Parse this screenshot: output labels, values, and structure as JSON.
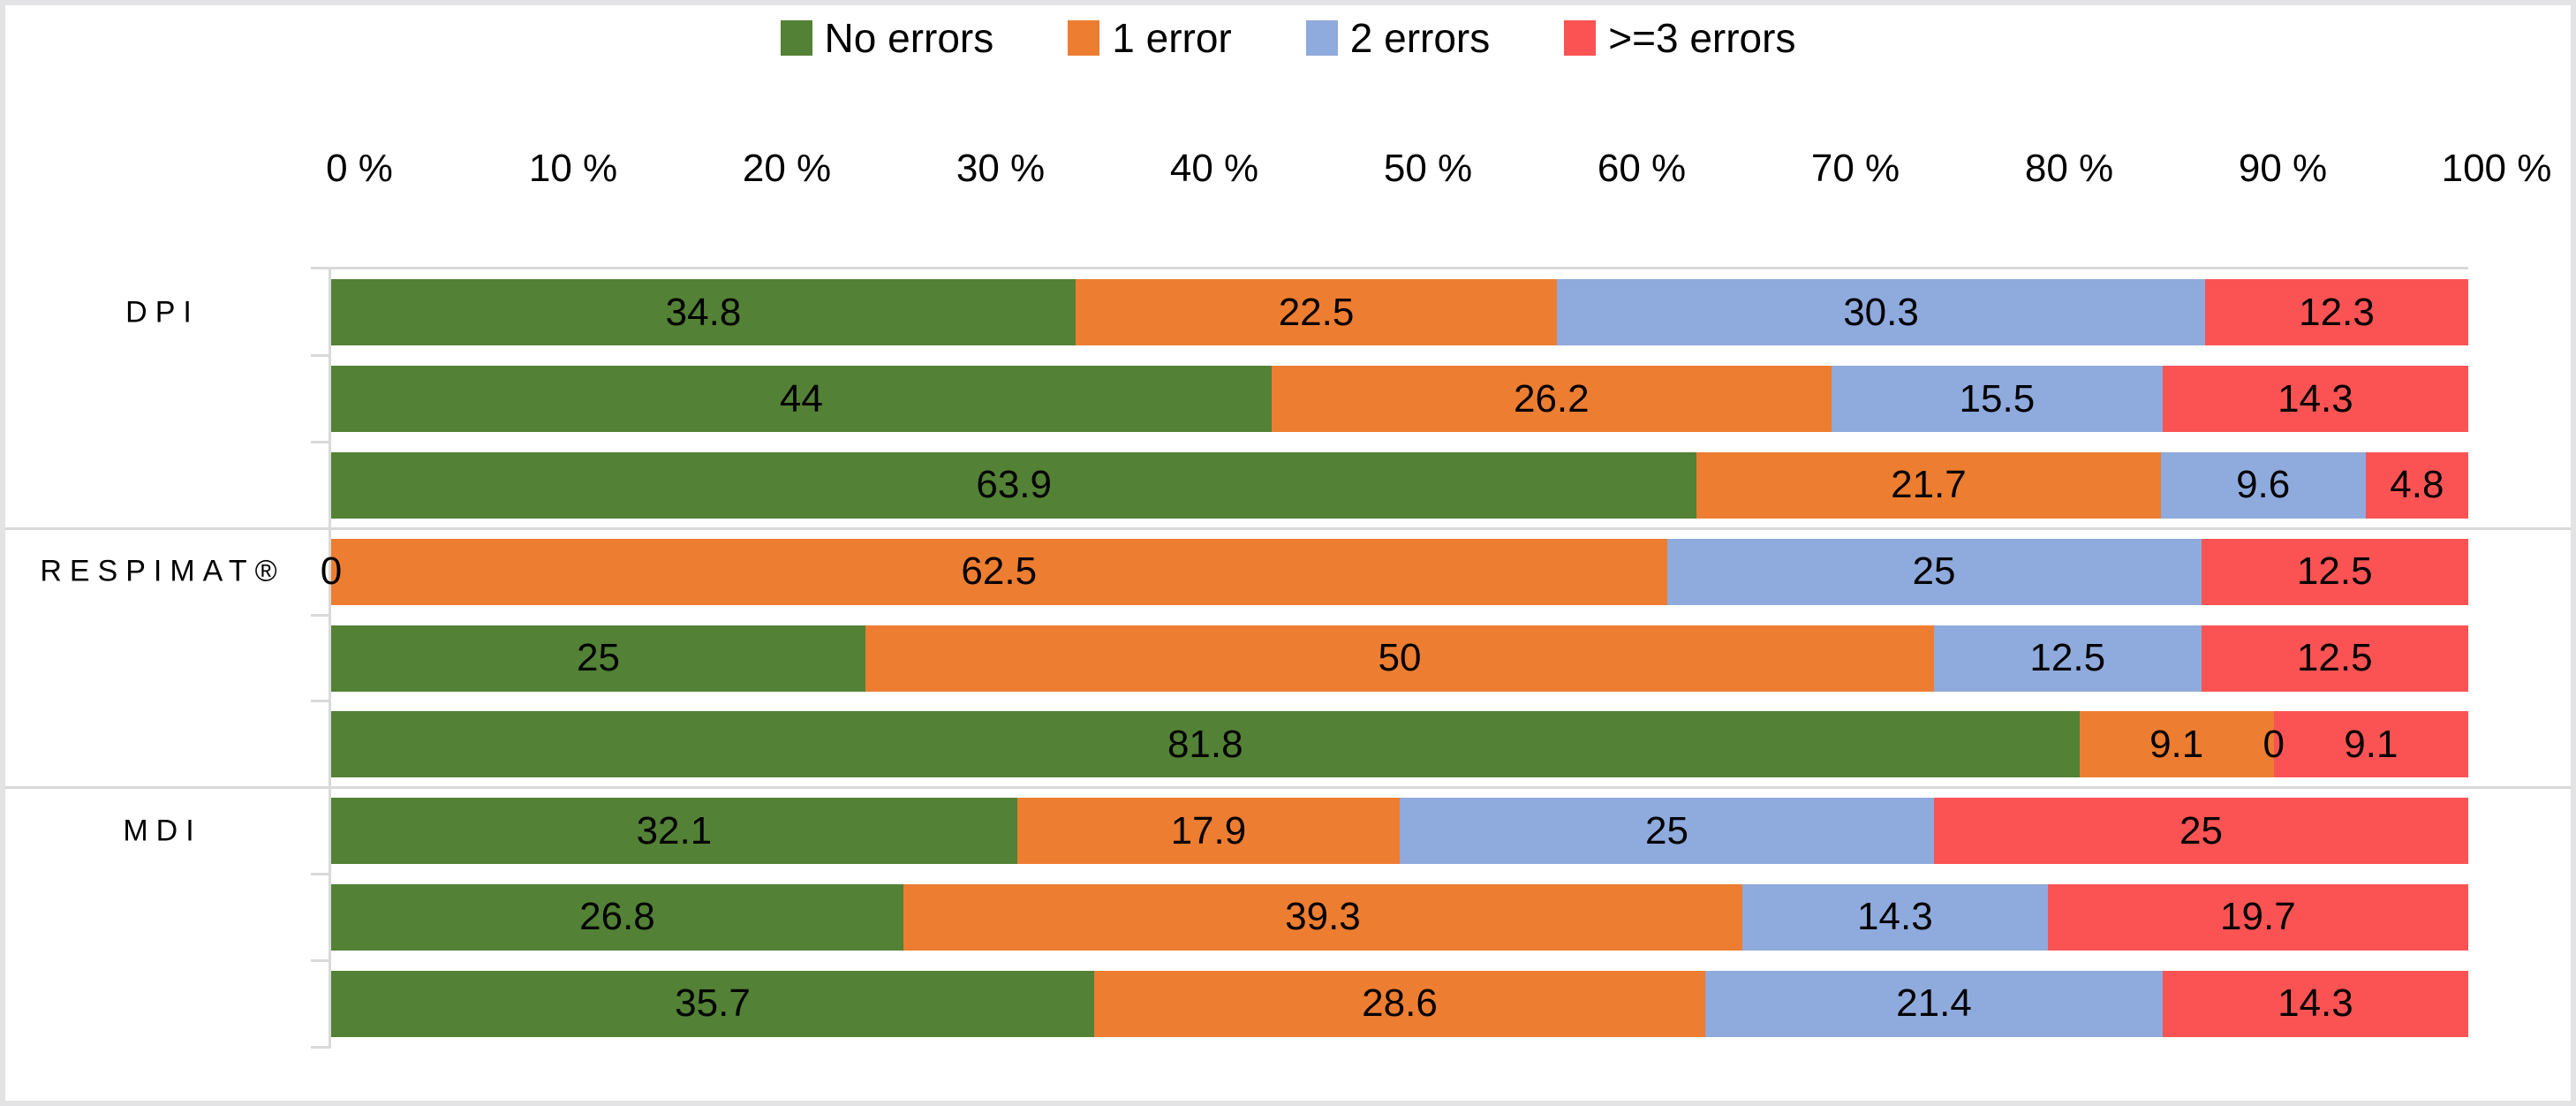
{
  "chart_data": {
    "type": "bar",
    "variant": "horizontal-stacked-100",
    "title": "",
    "legend_position": "top",
    "series": [
      {
        "name": "No errors",
        "color": "#538135"
      },
      {
        "name": "1 error",
        "color": "#ED7D31"
      },
      {
        "name": "2 errors",
        "color": "#8FAADC"
      },
      {
        "name": ">=3 errors",
        "color": "#FB5353"
      }
    ],
    "x_axis": {
      "position": "top",
      "min": 0,
      "max": 100,
      "tick_values": [
        0,
        10,
        20,
        30,
        40,
        50,
        60,
        70,
        80,
        90,
        100
      ],
      "tick_labels": [
        "0 %",
        "10 %",
        "20 %",
        "30 %",
        "40 %",
        "50 %",
        "60 %",
        "70 %",
        "80 %",
        "90 %",
        "100 %"
      ]
    },
    "y_axis_categories": [
      "DPI",
      "RESPIMAT®",
      "MDI"
    ],
    "groups": [
      {
        "category": "DPI",
        "bars": [
          {
            "values": [
              34.8,
              22.5,
              30.3,
              12.3
            ],
            "labels": [
              "34.8",
              "22.5",
              "30.3",
              "12.3"
            ]
          },
          {
            "values": [
              44,
              26.2,
              15.5,
              14.3
            ],
            "labels": [
              "44",
              "26.2",
              "15.5",
              "14.3"
            ]
          },
          {
            "values": [
              63.9,
              21.7,
              9.6,
              4.8
            ],
            "labels": [
              "63.9",
              "21.7",
              "9.6",
              "4.8"
            ]
          }
        ]
      },
      {
        "category": "RESPIMAT®",
        "bars": [
          {
            "values": [
              0,
              62.5,
              25,
              12.5
            ],
            "labels": [
              "0",
              "62.5",
              "25",
              "12.5"
            ]
          },
          {
            "values": [
              25,
              50,
              12.5,
              12.5
            ],
            "labels": [
              "25",
              "50",
              "12.5",
              "12.5"
            ]
          },
          {
            "values": [
              81.8,
              9.1,
              0,
              9.1
            ],
            "labels": [
              "81.8",
              "9.1",
              "0",
              "9.1"
            ]
          }
        ]
      },
      {
        "category": "MDI",
        "bars": [
          {
            "values": [
              32.1,
              17.9,
              25,
              25
            ],
            "labels": [
              "32.1",
              "17.9",
              "25",
              "25"
            ]
          },
          {
            "values": [
              26.8,
              39.3,
              14.3,
              19.7
            ],
            "labels": [
              "26.8",
              "39.3",
              "14.3",
              "19.7"
            ]
          },
          {
            "values": [
              35.7,
              28.6,
              21.4,
              14.3
            ],
            "labels": [
              "35.7",
              "28.6",
              "21.4",
              "14.3"
            ]
          }
        ]
      }
    ],
    "data_labels_shown": true,
    "grid": "group-separator-lines-only",
    "colors": {
      "axis_line": "#D9D9D9",
      "text": "#000000",
      "frame_border": "#E3E3E6",
      "background": "#FFFFFF"
    }
  }
}
